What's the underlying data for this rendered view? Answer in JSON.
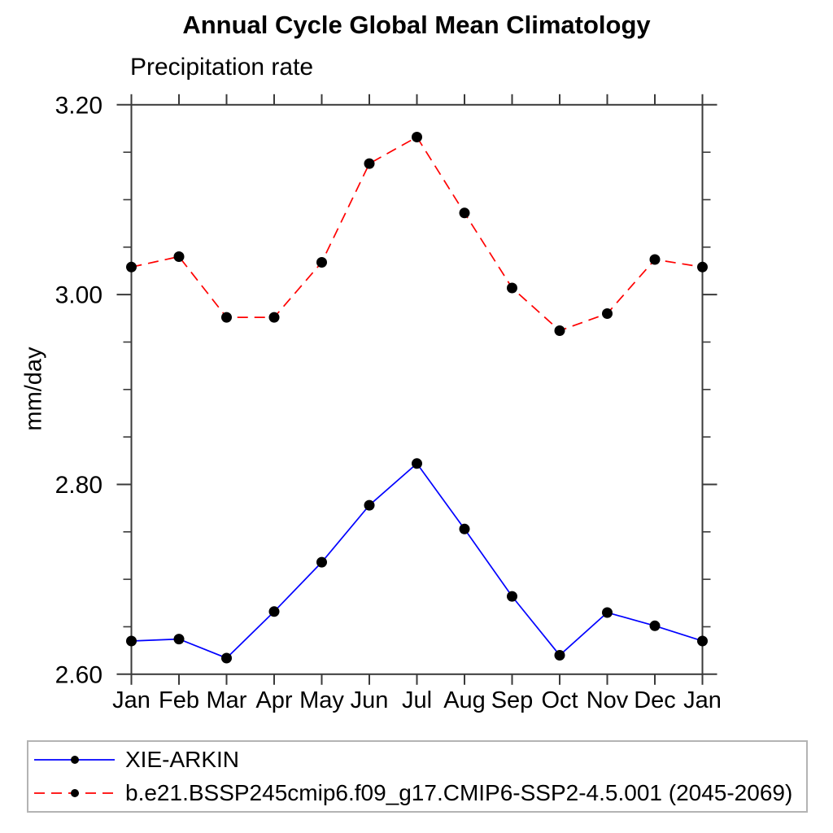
{
  "title": "Annual Cycle Global Mean Climatology",
  "subtitle": "Precipitation rate",
  "ylabel": "mm/day",
  "chart_data": {
    "type": "line",
    "categories": [
      "Jan",
      "Feb",
      "Mar",
      "Apr",
      "May",
      "Jun",
      "Jul",
      "Aug",
      "Sep",
      "Oct",
      "Nov",
      "Dec",
      "Jan"
    ],
    "series": [
      {
        "name": "XIE-ARKIN",
        "color": "#0000ff",
        "line_style": "solid",
        "marker": "filled-circle",
        "marker_color": "#000000",
        "values": [
          2.635,
          2.637,
          2.617,
          2.666,
          2.718,
          2.778,
          2.822,
          2.753,
          2.682,
          2.62,
          2.665,
          2.651,
          2.635
        ]
      },
      {
        "name": "b.e21.BSSP245cmip6.f09_g17.CMIP6-SSP2-4.5.001 (2045-2069)",
        "color": "#ff0000",
        "line_style": "dashed",
        "marker": "filled-circle",
        "marker_color": "#000000",
        "values": [
          3.029,
          3.04,
          2.976,
          2.976,
          3.034,
          3.138,
          3.166,
          3.086,
          3.007,
          2.962,
          2.98,
          3.037,
          3.029
        ]
      }
    ],
    "ylim": [
      2.6,
      3.2
    ],
    "y_major_ticks": [
      2.6,
      2.8,
      3.0,
      3.2
    ],
    "y_tick_labels": [
      "2.60",
      "2.80",
      "3.00",
      "3.20"
    ],
    "y_minor_step": 0.05,
    "xlabel": "",
    "grid": false,
    "legend_position": "bottom",
    "axis_color": "#3a3a3a"
  }
}
